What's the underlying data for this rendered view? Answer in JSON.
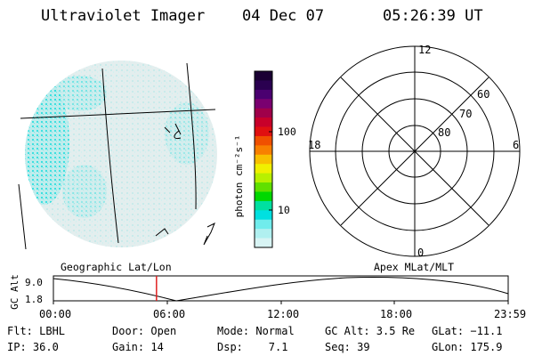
{
  "header": {
    "instrument": "Ultraviolet Imager",
    "date": "04 Dec 07",
    "time": "05:26:39 UT"
  },
  "colorbar": {
    "unit_label": "photon cm⁻²s⁻¹",
    "ticks": [
      "100",
      "10"
    ],
    "colors": [
      "#1a0033",
      "#2a0050",
      "#4a0070",
      "#7a0070",
      "#a0004a",
      "#c8002a",
      "#e01010",
      "#f05000",
      "#f88000",
      "#f8c000",
      "#f0f000",
      "#b8f000",
      "#60e000",
      "#00d800",
      "#00e0a0",
      "#00e0e0",
      "#70ecec",
      "#b0f0f0",
      "#d8f4f4"
    ]
  },
  "polar_plot": {
    "mlt_labels": {
      "top": "12",
      "bottom": "0",
      "left": "18",
      "right": "6"
    },
    "lat_labels": [
      "60",
      "70",
      "80"
    ]
  },
  "timeline": {
    "left_caption": "Geographic Lat/Lon",
    "right_caption": "Apex MLat/MLT",
    "y_axis_label": "GC Alt",
    "y_ticks": [
      "9.0",
      "1.8"
    ],
    "x_ticks": [
      "00:00",
      "06:00",
      "12:00",
      "18:00",
      "23:59"
    ],
    "marker_time_hours": 5.44
  },
  "footer": {
    "row1": {
      "flt": "Flt: LBHL",
      "door": "Door: Open",
      "mode": "Mode: Normal",
      "gc_alt": "GC Alt: 3.5 Re",
      "glat": "GLat: −11.1"
    },
    "row2": {
      "ip": "IP: 36.0",
      "gain": "Gain: 14",
      "dsp": "Dsp:    7.1",
      "seq": "Seq: 39",
      "glon": "GLon: 175.9"
    }
  }
}
